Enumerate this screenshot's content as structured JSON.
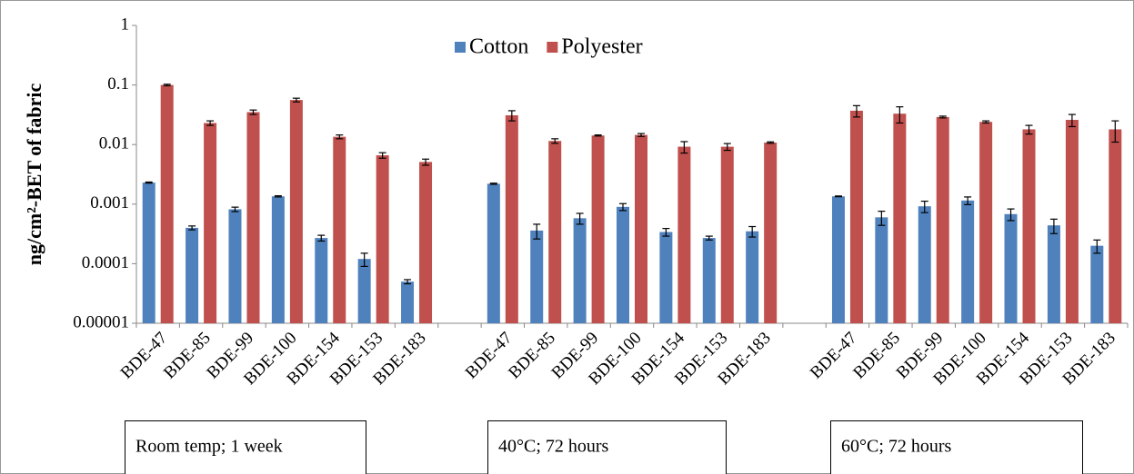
{
  "chart_data": {
    "type": "bar",
    "y_label": "ng/cm²-BET of fabric",
    "categories": [
      "BDE-47",
      "BDE-85",
      "BDE-99",
      "BDE-100",
      "BDE-154",
      "BDE-153",
      "BDE-183",
      null,
      "BDE-47",
      "BDE-85",
      "BDE-99",
      "BDE-100",
      "BDE-154",
      "BDE-153",
      "BDE-183",
      null,
      "BDE-47",
      "BDE-85",
      "BDE-99",
      "BDE-100",
      "BDE-154",
      "BDE-153",
      "BDE-183"
    ],
    "group_labels": [
      "Room temp; 1 week",
      "40°C; 72 hours",
      "60°C; 72 hours"
    ],
    "series": [
      {
        "name": "Cotton",
        "color": "#4f81bd",
        "values": [
          0.0023,
          0.0004,
          0.00082,
          0.00135,
          0.00027,
          0.00012,
          5e-05,
          null,
          0.0022,
          0.00036,
          0.00058,
          0.0009,
          0.00034,
          0.00027,
          0.00035,
          null,
          0.00135,
          0.0006,
          0.00092,
          0.00115,
          0.00068,
          0.00044,
          0.0002
        ],
        "errors": [
          5e-05,
          3e-05,
          7e-05,
          3e-05,
          3e-05,
          3e-05,
          4e-06,
          null,
          5e-05,
          0.0001,
          0.00012,
          0.00012,
          5e-05,
          2e-05,
          7e-05,
          null,
          2e-05,
          0.00016,
          0.0002,
          0.00017,
          0.00015,
          0.00012,
          5e-05
        ]
      },
      {
        "name": "Polyester",
        "color": "#c0504d",
        "values": [
          0.1,
          0.023,
          0.035,
          0.056,
          0.0135,
          0.0066,
          0.0051,
          null,
          0.031,
          0.0115,
          0.0142,
          0.0145,
          0.0092,
          0.0092,
          0.0108,
          null,
          0.037,
          0.033,
          0.029,
          0.024,
          0.018,
          0.026,
          0.018
        ],
        "errors": [
          0.003,
          0.002,
          0.003,
          0.004,
          0.001,
          0.0007,
          0.0006,
          null,
          0.006,
          0.001,
          0.0003,
          0.0008,
          0.002,
          0.0012,
          0.0003,
          null,
          0.008,
          0.01,
          0.001,
          0.001,
          0.003,
          0.006,
          0.007
        ]
      }
    ],
    "log_scale": true,
    "ylim": [
      1e-05,
      1
    ],
    "yticks": [
      1e-05,
      0.0001,
      0.001,
      0.01,
      0.1,
      1
    ],
    "legend": "top"
  }
}
